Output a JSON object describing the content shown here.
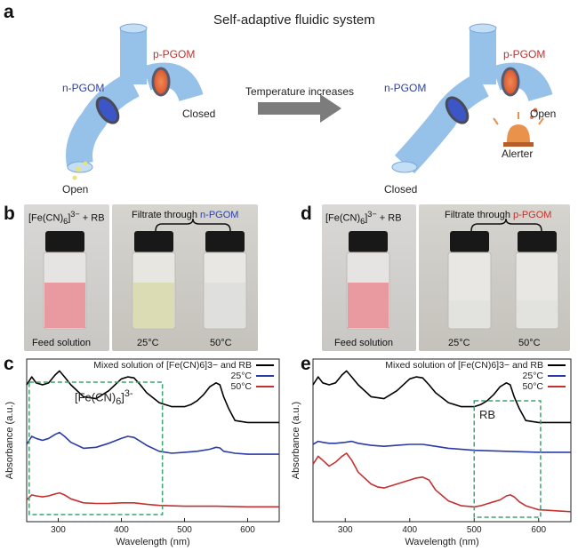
{
  "panel_a": {
    "letter": "a",
    "title": "Self-adaptive fluidic system",
    "arrow_label": "Temperature increases",
    "left": {
      "n_label": "n-PGOM",
      "p_label": "p-PGOM",
      "open_label": "Open",
      "closed_label": "Closed"
    },
    "right": {
      "n_label": "n-PGOM",
      "p_label": "p-PGOM",
      "open_label": "Open",
      "closed_label": "Closed",
      "alerter_label": "Alerter"
    },
    "colors": {
      "n_blue": "#2c3ea8",
      "p_red": "#c4302b"
    }
  },
  "panel_b": {
    "letter": "b",
    "feed_header": "[Fe(CN)6]3− + RB",
    "filtrate_prefix": "Filtrate through ",
    "filtrate_membrane": "n-PGOM",
    "feed_caption": "Feed solution",
    "vial_captions": [
      "25°C",
      "50°C"
    ]
  },
  "panel_d": {
    "letter": "d",
    "feed_header": "[Fe(CN)6]3− + RB",
    "filtrate_prefix": "Filtrate through ",
    "filtrate_membrane": "p-PGOM",
    "feed_caption": "Feed solution",
    "vial_captions": [
      "25°C",
      "50°C"
    ]
  },
  "panel_c": {
    "letter": "c",
    "annotation": "[Fe(CN)6]3-",
    "chart_data": {
      "type": "line",
      "xlabel": "Wavelength (nm)",
      "ylabel": "Absorbance (a.u.)",
      "xlim": [
        250,
        650
      ],
      "xticks": [
        "300",
        "400",
        "500",
        "600"
      ],
      "series": [
        {
          "name": "Mixed solution of [Fe(CN)6]3− and RB",
          "color": "#000000",
          "x": [
            250,
            258,
            265,
            275,
            285,
            295,
            302,
            310,
            320,
            340,
            360,
            380,
            400,
            410,
            420,
            430,
            440,
            460,
            480,
            500,
            510,
            520,
            530,
            540,
            550,
            556,
            562,
            570,
            580,
            600,
            650
          ],
          "y": [
            6.9,
            7.3,
            7.0,
            6.9,
            7.0,
            7.4,
            7.6,
            7.3,
            6.9,
            6.3,
            6.2,
            6.6,
            7.2,
            7.3,
            7.25,
            6.9,
            6.5,
            6.0,
            5.8,
            5.8,
            5.9,
            6.1,
            6.4,
            6.8,
            7.0,
            6.9,
            6.3,
            5.7,
            5.1,
            5.0,
            5.0
          ]
        },
        {
          "name": "25°C",
          "color": "#2b3ba6",
          "x": [
            250,
            258,
            265,
            275,
            285,
            295,
            302,
            310,
            320,
            340,
            360,
            380,
            400,
            410,
            420,
            430,
            440,
            460,
            480,
            500,
            520,
            540,
            550,
            556,
            562,
            580,
            600,
            650
          ],
          "y": [
            3.9,
            4.3,
            4.2,
            4.1,
            4.2,
            4.4,
            4.5,
            4.3,
            4.0,
            3.7,
            3.75,
            3.95,
            4.2,
            4.3,
            4.25,
            4.05,
            3.85,
            3.55,
            3.45,
            3.5,
            3.55,
            3.65,
            3.75,
            3.72,
            3.55,
            3.45,
            3.4,
            3.4
          ]
        },
        {
          "name": "50°C",
          "color": "#c43131",
          "x": [
            250,
            258,
            265,
            275,
            285,
            295,
            302,
            310,
            320,
            340,
            360,
            380,
            400,
            420,
            440,
            460,
            500,
            550,
            600,
            650
          ],
          "y": [
            1.1,
            1.35,
            1.3,
            1.25,
            1.3,
            1.4,
            1.45,
            1.35,
            1.15,
            0.95,
            0.92,
            0.92,
            0.95,
            0.95,
            0.88,
            0.82,
            0.78,
            0.78,
            0.75,
            0.75
          ]
        }
      ]
    }
  },
  "panel_e": {
    "letter": "e",
    "annotation": "RB",
    "chart_data": {
      "type": "line",
      "xlabel": "Wavelength (nm)",
      "ylabel": "Absorbance (a.u.)",
      "xlim": [
        250,
        650
      ],
      "xticks": [
        "300",
        "400",
        "500",
        "600"
      ],
      "series": [
        {
          "name": "Mixed solution of [Fe(CN)6]3− and RB",
          "color": "#000000",
          "x": [
            250,
            258,
            265,
            275,
            285,
            295,
            302,
            310,
            320,
            340,
            360,
            380,
            400,
            410,
            420,
            430,
            440,
            460,
            480,
            500,
            510,
            520,
            530,
            540,
            550,
            556,
            562,
            570,
            580,
            600,
            650
          ],
          "y": [
            6.9,
            7.3,
            7.0,
            6.9,
            7.0,
            7.4,
            7.6,
            7.3,
            6.9,
            6.3,
            6.2,
            6.6,
            7.2,
            7.3,
            7.25,
            6.9,
            6.5,
            6.0,
            5.8,
            5.8,
            5.9,
            6.1,
            6.4,
            6.8,
            7.0,
            6.9,
            6.3,
            5.7,
            5.1,
            5.0,
            5.0
          ]
        },
        {
          "name": "25°C",
          "color": "#2b3ba6",
          "x": [
            250,
            258,
            265,
            275,
            285,
            300,
            310,
            320,
            340,
            360,
            380,
            400,
            420,
            430,
            440,
            460,
            500,
            550,
            600,
            650
          ],
          "y": [
            3.9,
            4.05,
            4.0,
            3.95,
            3.95,
            4.0,
            4.05,
            3.95,
            3.85,
            3.8,
            3.85,
            3.9,
            3.9,
            3.85,
            3.8,
            3.7,
            3.6,
            3.55,
            3.5,
            3.5
          ]
        },
        {
          "name": "50°C",
          "color": "#c43131",
          "x": [
            250,
            258,
            265,
            275,
            285,
            295,
            302,
            310,
            320,
            330,
            340,
            350,
            360,
            380,
            400,
            410,
            420,
            430,
            440,
            460,
            480,
            500,
            510,
            520,
            530,
            540,
            550,
            556,
            562,
            570,
            580,
            600,
            650
          ],
          "y": [
            2.9,
            3.3,
            3.1,
            2.8,
            3.0,
            3.3,
            3.45,
            3.1,
            2.5,
            2.2,
            1.9,
            1.75,
            1.7,
            1.9,
            2.1,
            2.2,
            2.25,
            2.1,
            1.6,
            1.05,
            0.8,
            0.75,
            0.8,
            0.9,
            1.0,
            1.1,
            1.3,
            1.35,
            1.25,
            1.0,
            0.8,
            0.6,
            0.5
          ]
        }
      ]
    }
  }
}
